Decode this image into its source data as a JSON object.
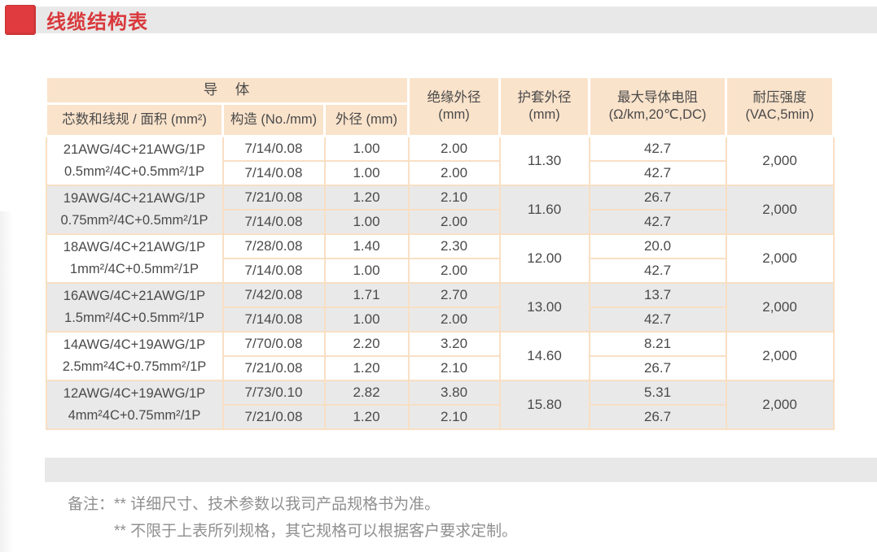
{
  "page": {
    "title": "线缆结构表"
  },
  "colors": {
    "accent_red": "#e03b3e",
    "title_bar_fill": "#e8e8e8",
    "table_header_fill": "#fae3cb",
    "table_border": "#f8dfc4",
    "alt_row_fill": "#e9e9e9",
    "note_text": "#8f8f8f"
  },
  "table": {
    "header": {
      "conductor_group": "导　体",
      "col_spec": "芯数和线规 / 面积 (mm²)",
      "col_construction": "构造 (No./mm)",
      "col_od": "外径 (mm)",
      "col_insulation": "绝缘外径\n(mm)",
      "col_jacket": "护套外径\n(mm)",
      "col_resistance": "最大导体电阻\n(Ω/km,20℃,DC)",
      "col_voltage": "耐压强度\n(VAC,5min)"
    },
    "groups": [
      {
        "spec": [
          "21AWG/4C+21AWG/1P",
          "0.5mm²/4C+0.5mm²/1P"
        ],
        "rows": [
          {
            "construction": "7/14/0.08",
            "od": "1.00",
            "insulation": "2.00",
            "resistance": "42.7"
          },
          {
            "construction": "7/14/0.08",
            "od": "1.00",
            "insulation": "2.00",
            "resistance": "42.7"
          }
        ],
        "jacket": "11.30",
        "voltage": "2,000"
      },
      {
        "spec": [
          "19AWG/4C+21AWG/1P",
          "0.75mm²/4C+0.5mm²/1P"
        ],
        "rows": [
          {
            "construction": "7/21/0.08",
            "od": "1.20",
            "insulation": "2.10",
            "resistance": "26.7"
          },
          {
            "construction": "7/14/0.08",
            "od": "1.00",
            "insulation": "2.00",
            "resistance": "42.7"
          }
        ],
        "jacket": "11.60",
        "voltage": "2,000"
      },
      {
        "spec": [
          "18AWG/4C+21AWG/1P",
          "1mm²/4C+0.5mm²/1P"
        ],
        "rows": [
          {
            "construction": "7/28/0.08",
            "od": "1.40",
            "insulation": "2.30",
            "resistance": "20.0"
          },
          {
            "construction": "7/14/0.08",
            "od": "1.00",
            "insulation": "2.00",
            "resistance": "42.7"
          }
        ],
        "jacket": "12.00",
        "voltage": "2,000"
      },
      {
        "spec": [
          "16AWG/4C+21AWG/1P",
          "1.5mm²/4C+0.5mm²/1P"
        ],
        "rows": [
          {
            "construction": "7/42/0.08",
            "od": "1.71",
            "insulation": "2.70",
            "resistance": "13.7"
          },
          {
            "construction": "7/14/0.08",
            "od": "1.00",
            "insulation": "2.00",
            "resistance": "42.7"
          }
        ],
        "jacket": "13.00",
        "voltage": "2,000"
      },
      {
        "spec": [
          "14AWG/4C+19AWG/1P",
          "2.5mm²4C+0.75mm²/1P"
        ],
        "rows": [
          {
            "construction": "7/70/0.08",
            "od": "2.20",
            "insulation": "3.20",
            "resistance": "8.21"
          },
          {
            "construction": "7/21/0.08",
            "od": "1.20",
            "insulation": "2.10",
            "resistance": "26.7"
          }
        ],
        "jacket": "14.60",
        "voltage": "2,000"
      },
      {
        "spec": [
          "12AWG/4C+19AWG/1P",
          "4mm²4C+0.75mm²/1P"
        ],
        "rows": [
          {
            "construction": "7/73/0.10",
            "od": "2.82",
            "insulation": "3.80",
            "resistance": "5.31"
          },
          {
            "construction": "7/21/0.08",
            "od": "1.20",
            "insulation": "2.10",
            "resistance": "26.7"
          }
        ],
        "jacket": "15.80",
        "voltage": "2,000"
      }
    ]
  },
  "notes": {
    "label": "备注：",
    "lines": [
      "** 详细尺寸、技术参数以我司产品规格书为准。",
      "** 不限于上表所列规格，其它规格可以根据客户要求定制。"
    ]
  }
}
